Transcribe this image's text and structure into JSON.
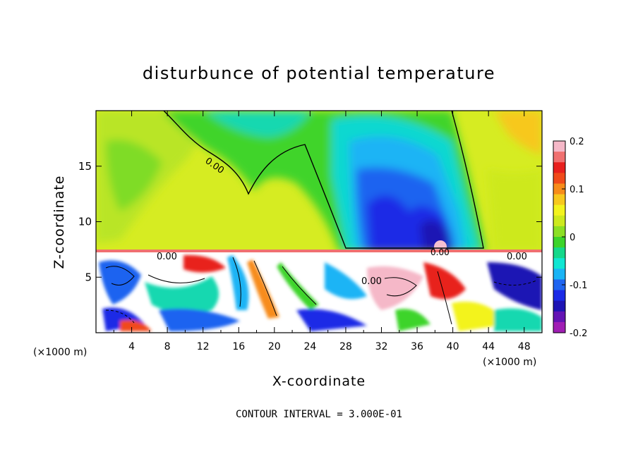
{
  "chart_data": {
    "type": "heatmap",
    "title": "disturbunce of potential temperature",
    "xlabel": "X-coordinate",
    "ylabel": "Z-coordinate",
    "x_unit_left": "(×1000 m)",
    "x_unit_right": "(×1000 m)",
    "xlim": [
      0,
      50
    ],
    "ylim": [
      0,
      20
    ],
    "x_ticks": [
      "4",
      "8",
      "12",
      "16",
      "20",
      "24",
      "28",
      "32",
      "36",
      "40",
      "44",
      "48"
    ],
    "y_ticks": [
      "5",
      "10",
      "15"
    ],
    "colorbar": {
      "range": [
        -0.2,
        0.2
      ],
      "tick_labels": [
        "0.2",
        "0.1",
        "0",
        "-0.1",
        "-0.2"
      ],
      "colors": [
        "#f5b8c8",
        "#f07070",
        "#e8201e",
        "#f04a1a",
        "#f78c1a",
        "#f7c81e",
        "#f3f31e",
        "#cde91e",
        "#8cdf24",
        "#3cd42a",
        "#14d88a",
        "#10e6d2",
        "#1ab4f5",
        "#1e64f0",
        "#1a2ae6",
        "#1e14b4",
        "#6414b4",
        "#a01eb4"
      ]
    },
    "contour_labels": [
      "0.00",
      "0.00",
      "0.00",
      "0.00",
      "0.00"
    ],
    "footer": "CONTOUR INTERVAL = 3.000E-01"
  }
}
